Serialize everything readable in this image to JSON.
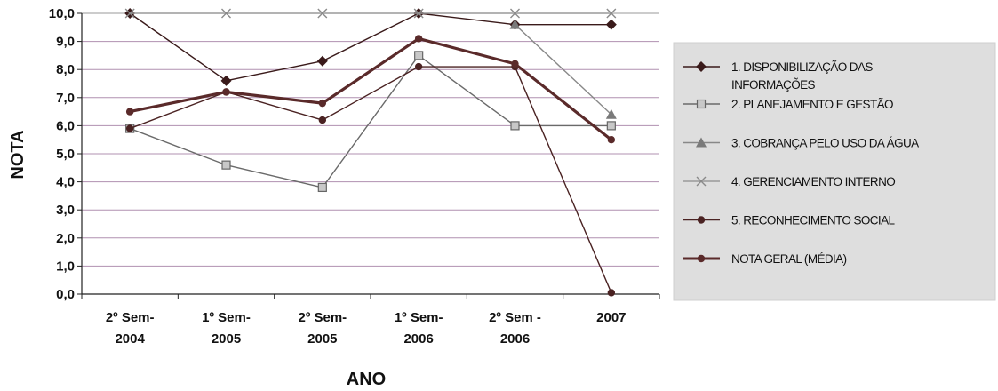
{
  "chart_data": {
    "type": "line",
    "xlabel": "ANO",
    "ylabel": "NOTA",
    "ylim": [
      0,
      10
    ],
    "y_ticks": [
      "0,0",
      "1,0",
      "2,0",
      "3,0",
      "4,0",
      "5,0",
      "6,0",
      "7,0",
      "8,0",
      "9,0",
      "10,0"
    ],
    "categories": [
      [
        "2º Sem-",
        "2004"
      ],
      [
        "1º Sem-",
        "2005"
      ],
      [
        "2º Sem-",
        "2005"
      ],
      [
        "1º Sem-",
        "2006"
      ],
      [
        "2º Sem -",
        "2006"
      ],
      [
        "2007"
      ]
    ],
    "grid": true,
    "legend_position": "right",
    "series": [
      {
        "name": "1. DISPONIBILIZAÇÃO DAS INFORMAÇÕES",
        "legend_lines": [
          "1. DISPONIBILIZAÇÃO DAS",
          "INFORMAÇÕES"
        ],
        "marker": "diamond",
        "color": "#3a1a1a",
        "values": [
          10.0,
          7.6,
          8.3,
          10.0,
          9.6,
          9.6
        ]
      },
      {
        "name": "2. PLANEJAMENTO E GESTÃO",
        "legend_lines": [
          "2. PLANEJAMENTO E GESTÃO"
        ],
        "marker": "square",
        "color": "#6a6a6a",
        "values": [
          5.9,
          4.6,
          3.8,
          8.5,
          6.0,
          6.0
        ]
      },
      {
        "name": "3. COBRANÇA PELO USO DA ÁGUA",
        "legend_lines": [
          "3. COBRANÇA PELO USO DA ÁGUA"
        ],
        "marker": "triangle",
        "color": "#888888",
        "values": [
          null,
          null,
          null,
          null,
          9.6,
          6.4
        ]
      },
      {
        "name": "4. GERENCIAMENTO INTERNO",
        "legend_lines": [
          "4. GERENCIAMENTO INTERNO"
        ],
        "marker": "x",
        "color": "#9a9a9a",
        "values": [
          10.0,
          10.0,
          10.0,
          10.0,
          10.0,
          10.0
        ]
      },
      {
        "name": "5. RECONHECIMENTO SOCIAL",
        "legend_lines": [
          "5. RECONHECIMENTO SOCIAL"
        ],
        "marker": "circle",
        "color": "#4a2222",
        "values": [
          5.9,
          7.2,
          6.2,
          8.1,
          8.1,
          0.05
        ]
      },
      {
        "name": "NOTA GERAL (MÉDIA)",
        "legend_lines": [
          "NOTA GERAL (MÉDIA)"
        ],
        "marker": "circle",
        "color": "#5a2a2a",
        "bold": true,
        "values": [
          6.5,
          7.2,
          6.8,
          9.1,
          8.2,
          5.5
        ]
      }
    ]
  }
}
